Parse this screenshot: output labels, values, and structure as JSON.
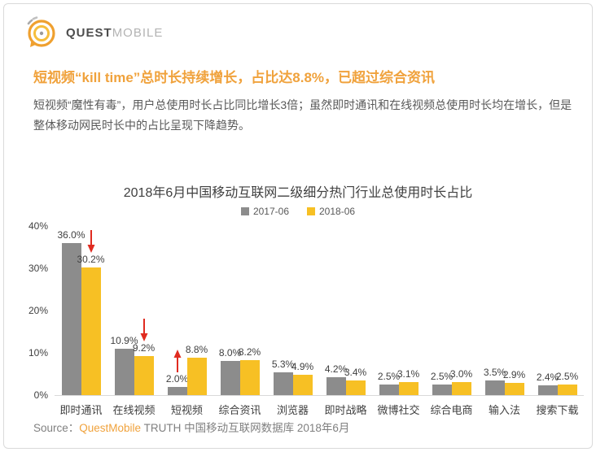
{
  "header": {
    "logo_bold": "QUEST",
    "logo_light": "MOBILE"
  },
  "headline": "短视频“kill time”总时长持续增长，占比达8.8%，已超过综合资讯",
  "body_text": "短视频“魔性有毒”，用户总使用时长占比同比增长3倍；虽然即时通讯和在线视频总使用时长均在增长，但是整体移动网民时长中的占比呈现下降趋势。",
  "chart_data": {
    "type": "bar",
    "title": "2018年6月中国移动互联网二级细分热门行业总使用时长占比",
    "categories": [
      "即时通讯",
      "在线视频",
      "短视频",
      "综合资讯",
      "浏览器",
      "即时战略",
      "微博社交",
      "综合电商",
      "输入法",
      "搜索下载"
    ],
    "series": [
      {
        "name": "2017-06",
        "color": "#8c8c8c",
        "values": [
          36.0,
          10.9,
          2.0,
          8.0,
          5.3,
          4.2,
          2.5,
          2.5,
          3.5,
          2.4
        ]
      },
      {
        "name": "2018-06",
        "color": "#f7c024",
        "values": [
          30.2,
          9.2,
          8.8,
          8.2,
          4.9,
          3.4,
          3.1,
          3.0,
          2.9,
          2.5
        ]
      }
    ],
    "ylabel": "",
    "xlabel": "",
    "ylim": [
      0,
      40
    ],
    "y_ticks": [
      "0%",
      "10%",
      "20%",
      "30%",
      "40%"
    ],
    "grid": false,
    "legend_position": "top",
    "value_label_format": "0.0%",
    "annotations": [
      {
        "category": "即时通讯",
        "direction": "down",
        "on_series": 1
      },
      {
        "category": "在线视频",
        "direction": "down",
        "on_series": 1
      },
      {
        "category": "短视频",
        "direction": "up",
        "on_series": 0
      }
    ],
    "arrow_color": "#e02b20"
  },
  "source": {
    "label": "Source：",
    "brand": "QuestMobile",
    "rest": " TRUTH 中国移动互联网数据库 2018年6月"
  },
  "colors": {
    "accent_orange": "#f0a23c",
    "series_2017": "#8c8c8c",
    "series_2018": "#f7c024",
    "arrow_red": "#e02b20",
    "baseline_gray": "#d9d9d9"
  }
}
